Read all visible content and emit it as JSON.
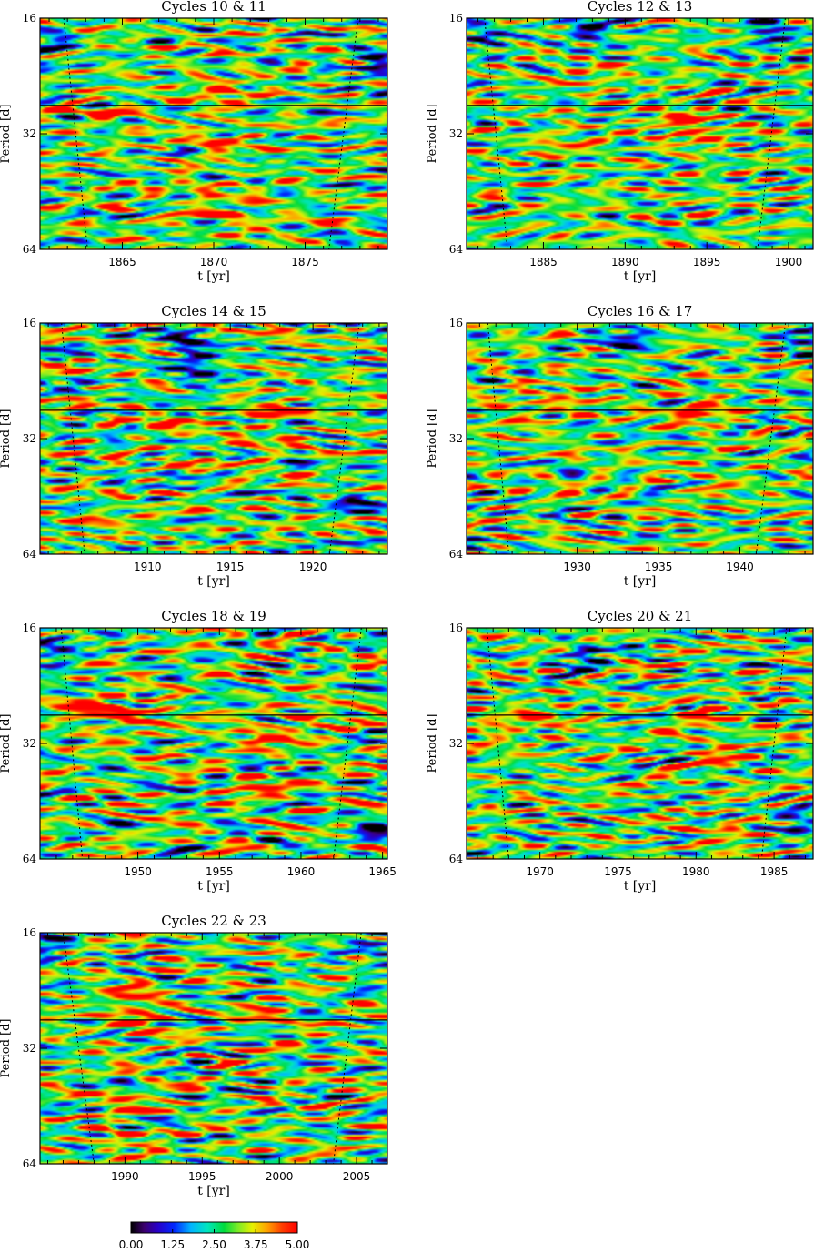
{
  "chart_data": [
    {
      "type": "heatmap",
      "title": "Cycles 10 & 11",
      "xlabel": "t [yr]",
      "ylabel": "Period [d]",
      "xlim": [
        1860.5,
        1879.5
      ],
      "xticks": [
        1865,
        1870,
        1875
      ],
      "yticks": [
        16,
        32,
        64
      ],
      "ylim": [
        16,
        64
      ],
      "yscale": "log",
      "reference_period": 27,
      "coi_x_top": [
        1861.8,
        1877.9
      ],
      "coi_x_bottom": [
        1863.1,
        1876.3
      ],
      "hotspots": [
        {
          "t": 1870.3,
          "p": 25.0,
          "v": 4.6
        },
        {
          "t": 1870.2,
          "p": 33.5,
          "v": 4.2
        },
        {
          "t": 1864.3,
          "p": 28.5,
          "v": 4.0
        },
        {
          "t": 1871.0,
          "p": 53.0,
          "v": 4.4
        },
        {
          "t": 1869.5,
          "p": 46.0,
          "v": 3.9
        }
      ],
      "lowspots": [
        {
          "t": 1879.0,
          "p": 21.0,
          "v": 0.8
        },
        {
          "t": 1861.0,
          "p": 19.0,
          "v": 1.2
        }
      ],
      "seed": 11
    },
    {
      "type": "heatmap",
      "title": "Cycles 12 & 13",
      "xlabel": "t [yr]",
      "ylabel": "Period [d]",
      "xlim": [
        1880.3,
        1901.5
      ],
      "xticks": [
        1885,
        1890,
        1895,
        1900
      ],
      "yticks": [
        16,
        32,
        64
      ],
      "ylim": [
        16,
        64
      ],
      "yscale": "log",
      "reference_period": 27,
      "coi_x_top": [
        1881.4,
        1899.8
      ],
      "coi_x_bottom": [
        1882.8,
        1898.1
      ],
      "hotspots": [
        {
          "t": 1894.3,
          "p": 32.0,
          "v": 4.5
        },
        {
          "t": 1893.2,
          "p": 29.0,
          "v": 4.2
        },
        {
          "t": 1886.5,
          "p": 34.0,
          "v": 3.9
        },
        {
          "t": 1888.0,
          "p": 22.5,
          "v": 3.9
        }
      ],
      "lowspots": [
        {
          "t": 1888.0,
          "p": 17.0,
          "v": 0.6
        },
        {
          "t": 1899.0,
          "p": 17.2,
          "v": 0.7
        },
        {
          "t": 1881.5,
          "p": 17.5,
          "v": 1.1
        }
      ],
      "seed": 13
    },
    {
      "type": "heatmap",
      "title": "Cycles 14 & 15",
      "xlabel": "t [yr]",
      "ylabel": "Period [d]",
      "xlim": [
        1903.5,
        1924.5
      ],
      "xticks": [
        1910,
        1915,
        1920
      ],
      "yticks": [
        16,
        32,
        64
      ],
      "ylim": [
        16,
        64
      ],
      "yscale": "log",
      "reference_period": 27,
      "coi_x_top": [
        1904.8,
        1922.8
      ],
      "coi_x_bottom": [
        1906.2,
        1921.0
      ],
      "hotspots": [
        {
          "t": 1917.5,
          "p": 27.0,
          "v": 4.7
        },
        {
          "t": 1911.0,
          "p": 29.5,
          "v": 4.1
        },
        {
          "t": 1916.5,
          "p": 34.0,
          "v": 4.0
        },
        {
          "t": 1907.5,
          "p": 54.0,
          "v": 3.9
        }
      ],
      "lowspots": [
        {
          "t": 1912.5,
          "p": 18.5,
          "v": 0.4
        },
        {
          "t": 1913.2,
          "p": 22.0,
          "v": 1.0
        },
        {
          "t": 1922.5,
          "p": 47.0,
          "v": 1.2
        }
      ],
      "seed": 15
    },
    {
      "type": "heatmap",
      "title": "Cycles 16 & 17",
      "xlabel": "t [yr]",
      "ylabel": "Period [d]",
      "xlim": [
        1923.2,
        1944.5
      ],
      "xticks": [
        1930,
        1935,
        1940
      ],
      "yticks": [
        16,
        32,
        64
      ],
      "ylim": [
        16,
        64
      ],
      "yscale": "log",
      "reference_period": 27,
      "coi_x_top": [
        1924.5,
        1942.8
      ],
      "coi_x_bottom": [
        1925.8,
        1941.0
      ],
      "hotspots": [
        {
          "t": 1937.5,
          "p": 27.3,
          "v": 4.9
        },
        {
          "t": 1929.5,
          "p": 25.0,
          "v": 4.1
        },
        {
          "t": 1926.2,
          "p": 27.5,
          "v": 4.0
        },
        {
          "t": 1938.5,
          "p": 42.0,
          "v": 3.8
        }
      ],
      "lowspots": [
        {
          "t": 1933.0,
          "p": 18.0,
          "v": 1.0
        },
        {
          "t": 1944.0,
          "p": 17.0,
          "v": 1.0
        }
      ],
      "seed": 17
    },
    {
      "type": "heatmap",
      "title": "Cycles 18 & 19",
      "xlabel": "t [yr]",
      "ylabel": "Period [d]",
      "xlim": [
        1944.0,
        1965.3
      ],
      "xticks": [
        1950,
        1955,
        1960,
        1965
      ],
      "yticks": [
        16,
        32,
        64
      ],
      "ylim": [
        16,
        64
      ],
      "yscale": "log",
      "reference_period": 27,
      "coi_x_top": [
        1945.3,
        1963.7
      ],
      "coi_x_bottom": [
        1946.6,
        1962.0
      ],
      "hotspots": [
        {
          "t": 1947.5,
          "p": 26.0,
          "v": 5.0
        },
        {
          "t": 1950.2,
          "p": 27.2,
          "v": 4.6
        },
        {
          "t": 1958.0,
          "p": 30.5,
          "v": 4.5
        },
        {
          "t": 1957.5,
          "p": 42.0,
          "v": 4.3
        },
        {
          "t": 1961.0,
          "p": 27.5,
          "v": 4.2
        }
      ],
      "lowspots": [
        {
          "t": 1945.0,
          "p": 18.5,
          "v": 0.8
        },
        {
          "t": 1964.5,
          "p": 55.0,
          "v": 1.0
        }
      ],
      "seed": 19
    },
    {
      "type": "heatmap",
      "title": "Cycles 20 & 21",
      "xlabel": "t [yr]",
      "ylabel": "Period [d]",
      "xlim": [
        1965.3,
        1987.5
      ],
      "xticks": [
        1970,
        1975,
        1980,
        1985
      ],
      "yticks": [
        16,
        32,
        64
      ],
      "ylim": [
        16,
        64
      ],
      "yscale": "log",
      "reference_period": 27,
      "coi_x_top": [
        1966.6,
        1985.8
      ],
      "coi_x_bottom": [
        1968.0,
        1984.2
      ],
      "hotspots": [
        {
          "t": 1980.5,
          "p": 27.5,
          "v": 4.8
        },
        {
          "t": 1969.8,
          "p": 27.5,
          "v": 4.5
        },
        {
          "t": 1981.5,
          "p": 35.0,
          "v": 4.4
        },
        {
          "t": 1982.0,
          "p": 56.0,
          "v": 4.3
        },
        {
          "t": 1966.5,
          "p": 30.0,
          "v": 4.2
        }
      ],
      "lowspots": [
        {
          "t": 1973.0,
          "p": 19.0,
          "v": 1.0
        },
        {
          "t": 1986.5,
          "p": 52.0,
          "v": 1.1
        }
      ],
      "seed": 21
    },
    {
      "type": "heatmap",
      "title": "Cycles 22 & 23",
      "xlabel": "t [yr]",
      "ylabel": "Period [d]",
      "xlim": [
        1984.5,
        2007.0
      ],
      "xticks": [
        1990,
        1995,
        2000,
        2005
      ],
      "yticks": [
        16,
        32,
        64
      ],
      "ylim": [
        16,
        64
      ],
      "yscale": "log",
      "reference_period": 27,
      "coi_x_top": [
        1986.0,
        2005.3
      ],
      "coi_x_bottom": [
        1988.0,
        2003.5
      ],
      "hotspots": [
        {
          "t": 1990.5,
          "p": 27.0,
          "v": 5.0
        },
        {
          "t": 1990.8,
          "p": 23.0,
          "v": 4.4
        },
        {
          "t": 1990.0,
          "p": 45.0,
          "v": 4.2
        },
        {
          "t": 1999.5,
          "p": 26.0,
          "v": 4.1
        },
        {
          "t": 1990.2,
          "p": 57.0,
          "v": 4.2
        }
      ],
      "lowspots": [
        {
          "t": 1985.0,
          "p": 17.0,
          "v": 1.0
        },
        {
          "t": 2006.5,
          "p": 18.0,
          "v": 1.2
        }
      ],
      "seed": 23
    }
  ],
  "colorbar": {
    "ticks": [
      "0.00",
      "1.25",
      "2.50",
      "3.75",
      "5.00"
    ],
    "range": [
      0,
      5
    ]
  }
}
